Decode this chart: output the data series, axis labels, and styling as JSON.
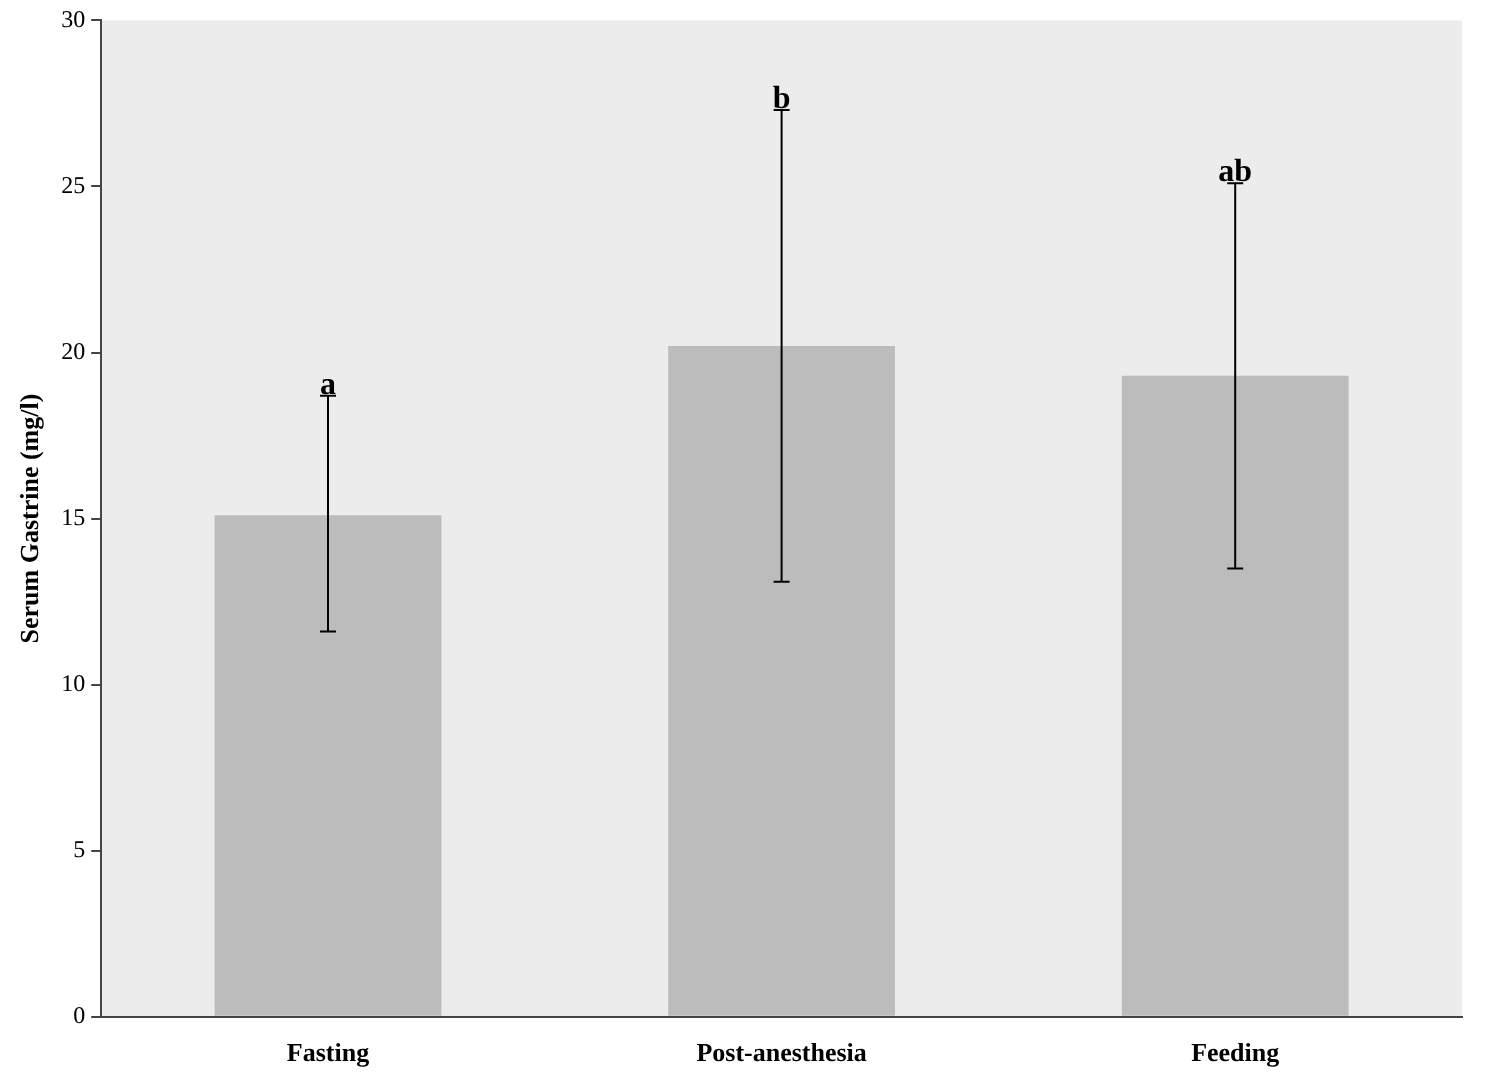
{
  "chart_data": {
    "type": "bar",
    "ylabel": "Serum Gastrine (mg/l)",
    "categories": [
      "Fasting",
      "Post-anesthesia",
      "Feeding"
    ],
    "values": [
      15.1,
      20.2,
      19.3
    ],
    "errors": [
      [
        11.6,
        18.7
      ],
      [
        13.1,
        27.3
      ],
      [
        13.5,
        25.1
      ]
    ],
    "color": "#bcbcbc",
    "ylim": [
      0,
      30
    ],
    "yticks": [
      0,
      5,
      10,
      15,
      20,
      25,
      30
    ],
    "grid": false,
    "legend": false,
    "annotations": [
      {
        "text": "a",
        "x": "Fasting",
        "y": 18.7
      },
      {
        "text": "b",
        "x": "Post-anesthesia",
        "y": 27.3
      },
      {
        "text": "ab",
        "x": "Feeding",
        "y": 25.1
      }
    ]
  }
}
